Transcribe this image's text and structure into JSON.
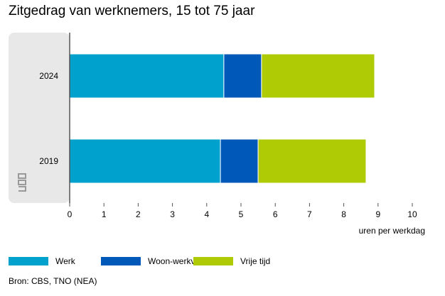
{
  "title": "Zitgedrag van werknemers, 15 tot 75 jaar",
  "source": "Bron: CBS, TNO (NEA)",
  "chart_data": {
    "type": "bar",
    "orientation": "horizontal",
    "stacked": true,
    "categories": [
      "2024",
      "2019"
    ],
    "series": [
      {
        "name": "Werk",
        "color": "#00a1cd",
        "values": [
          4.5,
          4.4
        ]
      },
      {
        "name": "Woon-werkverkeer",
        "color": "#0058b8",
        "values": [
          1.1,
          1.1
        ]
      },
      {
        "name": "Vrije tijd",
        "color": "#afcb05",
        "values": [
          3.3,
          3.15
        ]
      }
    ],
    "xlabel": "uren per werkdag",
    "xlim": [
      0,
      10
    ],
    "xticks": [
      "0",
      "1",
      "2",
      "3",
      "4",
      "5",
      "6",
      "7",
      "8",
      "9",
      "10"
    ],
    "grid": false,
    "legend": "bottom"
  }
}
